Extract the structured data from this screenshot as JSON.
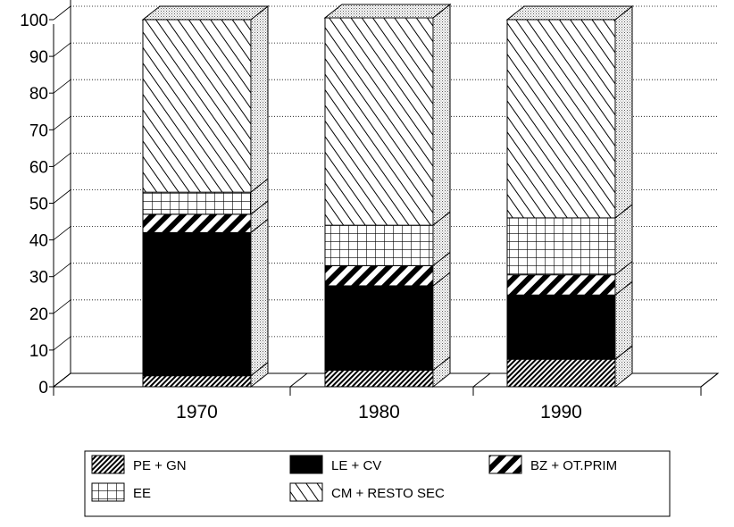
{
  "chart_data": {
    "type": "bar",
    "stacked": true,
    "three_d": true,
    "title": "",
    "xlabel": "",
    "ylabel": "",
    "ylim": [
      0,
      100
    ],
    "yticks": [
      "0",
      "10",
      "20",
      "30",
      "40",
      "50",
      "60",
      "70",
      "80",
      "90",
      "100"
    ],
    "grid": true,
    "legend_position": "bottom",
    "categories": [
      "1970",
      "1980",
      "1990"
    ],
    "series": [
      {
        "name": "PE + GN",
        "pattern": "dense-hatch",
        "values": [
          3,
          4.5,
          7.5
        ]
      },
      {
        "name": "LE + CV",
        "pattern": "solid-black",
        "values": [
          39,
          23,
          17.5
        ]
      },
      {
        "name": "BZ + OT.PRIM",
        "pattern": "bold-stripes",
        "values": [
          5,
          5.5,
          5.5
        ]
      },
      {
        "name": "EE",
        "pattern": "grid",
        "values": [
          6,
          11,
          15.5
        ]
      },
      {
        "name": "CM + RESTO SEC",
        "pattern": "light-diagonal",
        "values": [
          47,
          56.5,
          54
        ]
      }
    ]
  }
}
